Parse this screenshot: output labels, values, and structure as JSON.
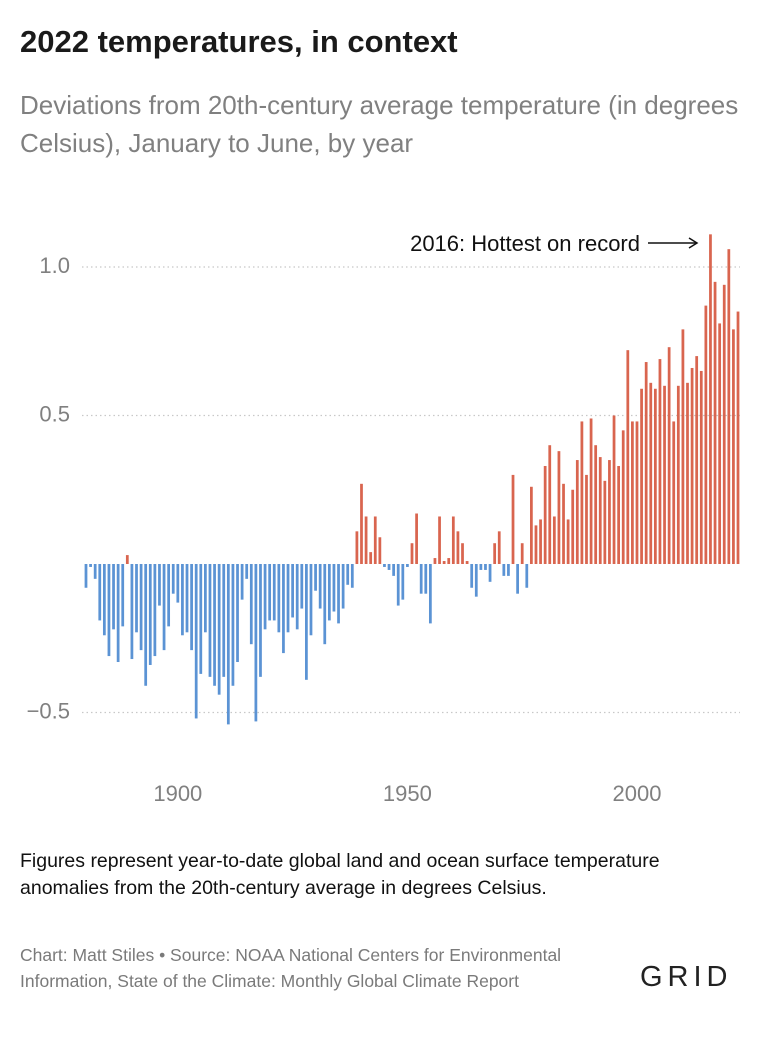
{
  "chart_data": {
    "type": "bar",
    "title": "2022 temperatures, in context",
    "subtitle": "Deviations from 20th-century average temperature (in degrees Celsius), January to June, by year",
    "annotation": "2016: Hottest on record",
    "note": "Figures represent year-to-date global land and ocean surface temperature anomalies from the 20th-century average in degrees Celsius.",
    "credit": "Chart: Matt Stiles • Source: NOAA National Centers for Environmental Information, State of the Climate: Monthly Global Climate Report",
    "logo": "GRID",
    "color_positive": "#d9654f",
    "color_negative": "#5b93d4",
    "grid": true,
    "xlim": [
      1879,
      2023
    ],
    "xticks": [
      1900,
      1950,
      2000
    ],
    "ylim": [
      -0.6,
      1.2
    ],
    "yticks": [
      {
        "value": 1,
        "label": "1.0"
      },
      0.5,
      {
        "value": -0.5,
        "label": "−0.5"
      }
    ],
    "x": [
      1880,
      1881,
      1882,
      1883,
      1884,
      1885,
      1886,
      1887,
      1888,
      1889,
      1890,
      1891,
      1892,
      1893,
      1894,
      1895,
      1896,
      1897,
      1898,
      1899,
      1900,
      1901,
      1902,
      1903,
      1904,
      1905,
      1906,
      1907,
      1908,
      1909,
      1910,
      1911,
      1912,
      1913,
      1914,
      1915,
      1916,
      1917,
      1918,
      1919,
      1920,
      1921,
      1922,
      1923,
      1924,
      1925,
      1926,
      1927,
      1928,
      1929,
      1930,
      1931,
      1932,
      1933,
      1934,
      1935,
      1936,
      1937,
      1938,
      1939,
      1940,
      1941,
      1942,
      1943,
      1944,
      1945,
      1946,
      1947,
      1948,
      1949,
      1950,
      1951,
      1952,
      1953,
      1954,
      1955,
      1956,
      1957,
      1958,
      1959,
      1960,
      1961,
      1962,
      1963,
      1964,
      1965,
      1966,
      1967,
      1968,
      1969,
      1970,
      1971,
      1972,
      1973,
      1974,
      1975,
      1976,
      1977,
      1978,
      1979,
      1980,
      1981,
      1982,
      1983,
      1984,
      1985,
      1986,
      1987,
      1988,
      1989,
      1990,
      1991,
      1992,
      1993,
      1994,
      1995,
      1996,
      1997,
      1998,
      1999,
      2000,
      2001,
      2002,
      2003,
      2004,
      2005,
      2006,
      2007,
      2008,
      2009,
      2010,
      2011,
      2012,
      2013,
      2014,
      2015,
      2016,
      2017,
      2018,
      2019,
      2020,
      2021,
      2022
    ],
    "values": [
      -0.08,
      -0.01,
      -0.05,
      -0.19,
      -0.24,
      -0.31,
      -0.22,
      -0.33,
      -0.21,
      0.03,
      -0.32,
      -0.23,
      -0.29,
      -0.41,
      -0.34,
      -0.31,
      -0.14,
      -0.29,
      -0.21,
      -0.1,
      -0.13,
      -0.24,
      -0.23,
      -0.29,
      -0.52,
      -0.37,
      -0.23,
      -0.38,
      -0.41,
      -0.44,
      -0.38,
      -0.54,
      -0.41,
      -0.33,
      -0.12,
      -0.05,
      -0.27,
      -0.53,
      -0.38,
      -0.22,
      -0.19,
      -0.19,
      -0.23,
      -0.3,
      -0.23,
      -0.18,
      -0.22,
      -0.15,
      -0.39,
      -0.24,
      -0.09,
      -0.15,
      -0.27,
      -0.19,
      -0.16,
      -0.2,
      -0.15,
      -0.07,
      -0.08,
      0.11,
      0.27,
      0.16,
      0.04,
      0.16,
      0.09,
      -0.01,
      -0.02,
      -0.04,
      -0.14,
      -0.12,
      -0.01,
      0.07,
      0.17,
      -0.1,
      -0.1,
      -0.2,
      0.02,
      0.16,
      0.01,
      0.02,
      0.16,
      0.11,
      0.07,
      0.01,
      -0.08,
      -0.11,
      -0.02,
      -0.02,
      -0.06,
      0.07,
      0.11,
      -0.04,
      -0.04,
      0.3,
      -0.1,
      0.07,
      -0.08,
      0.26,
      0.13,
      0.15,
      0.33,
      0.4,
      0.16,
      0.38,
      0.27,
      0.15,
      0.25,
      0.35,
      0.48,
      0.3,
      0.49,
      0.4,
      0.36,
      0.28,
      0.35,
      0.5,
      0.33,
      0.45,
      0.72,
      0.48,
      0.48,
      0.59,
      0.68,
      0.61,
      0.59,
      0.69,
      0.6,
      0.73,
      0.48,
      0.6,
      0.79,
      0.61,
      0.66,
      0.7,
      0.65,
      0.87,
      1.11,
      0.95,
      0.81,
      0.94,
      1.06,
      0.79,
      0.85
    ]
  }
}
